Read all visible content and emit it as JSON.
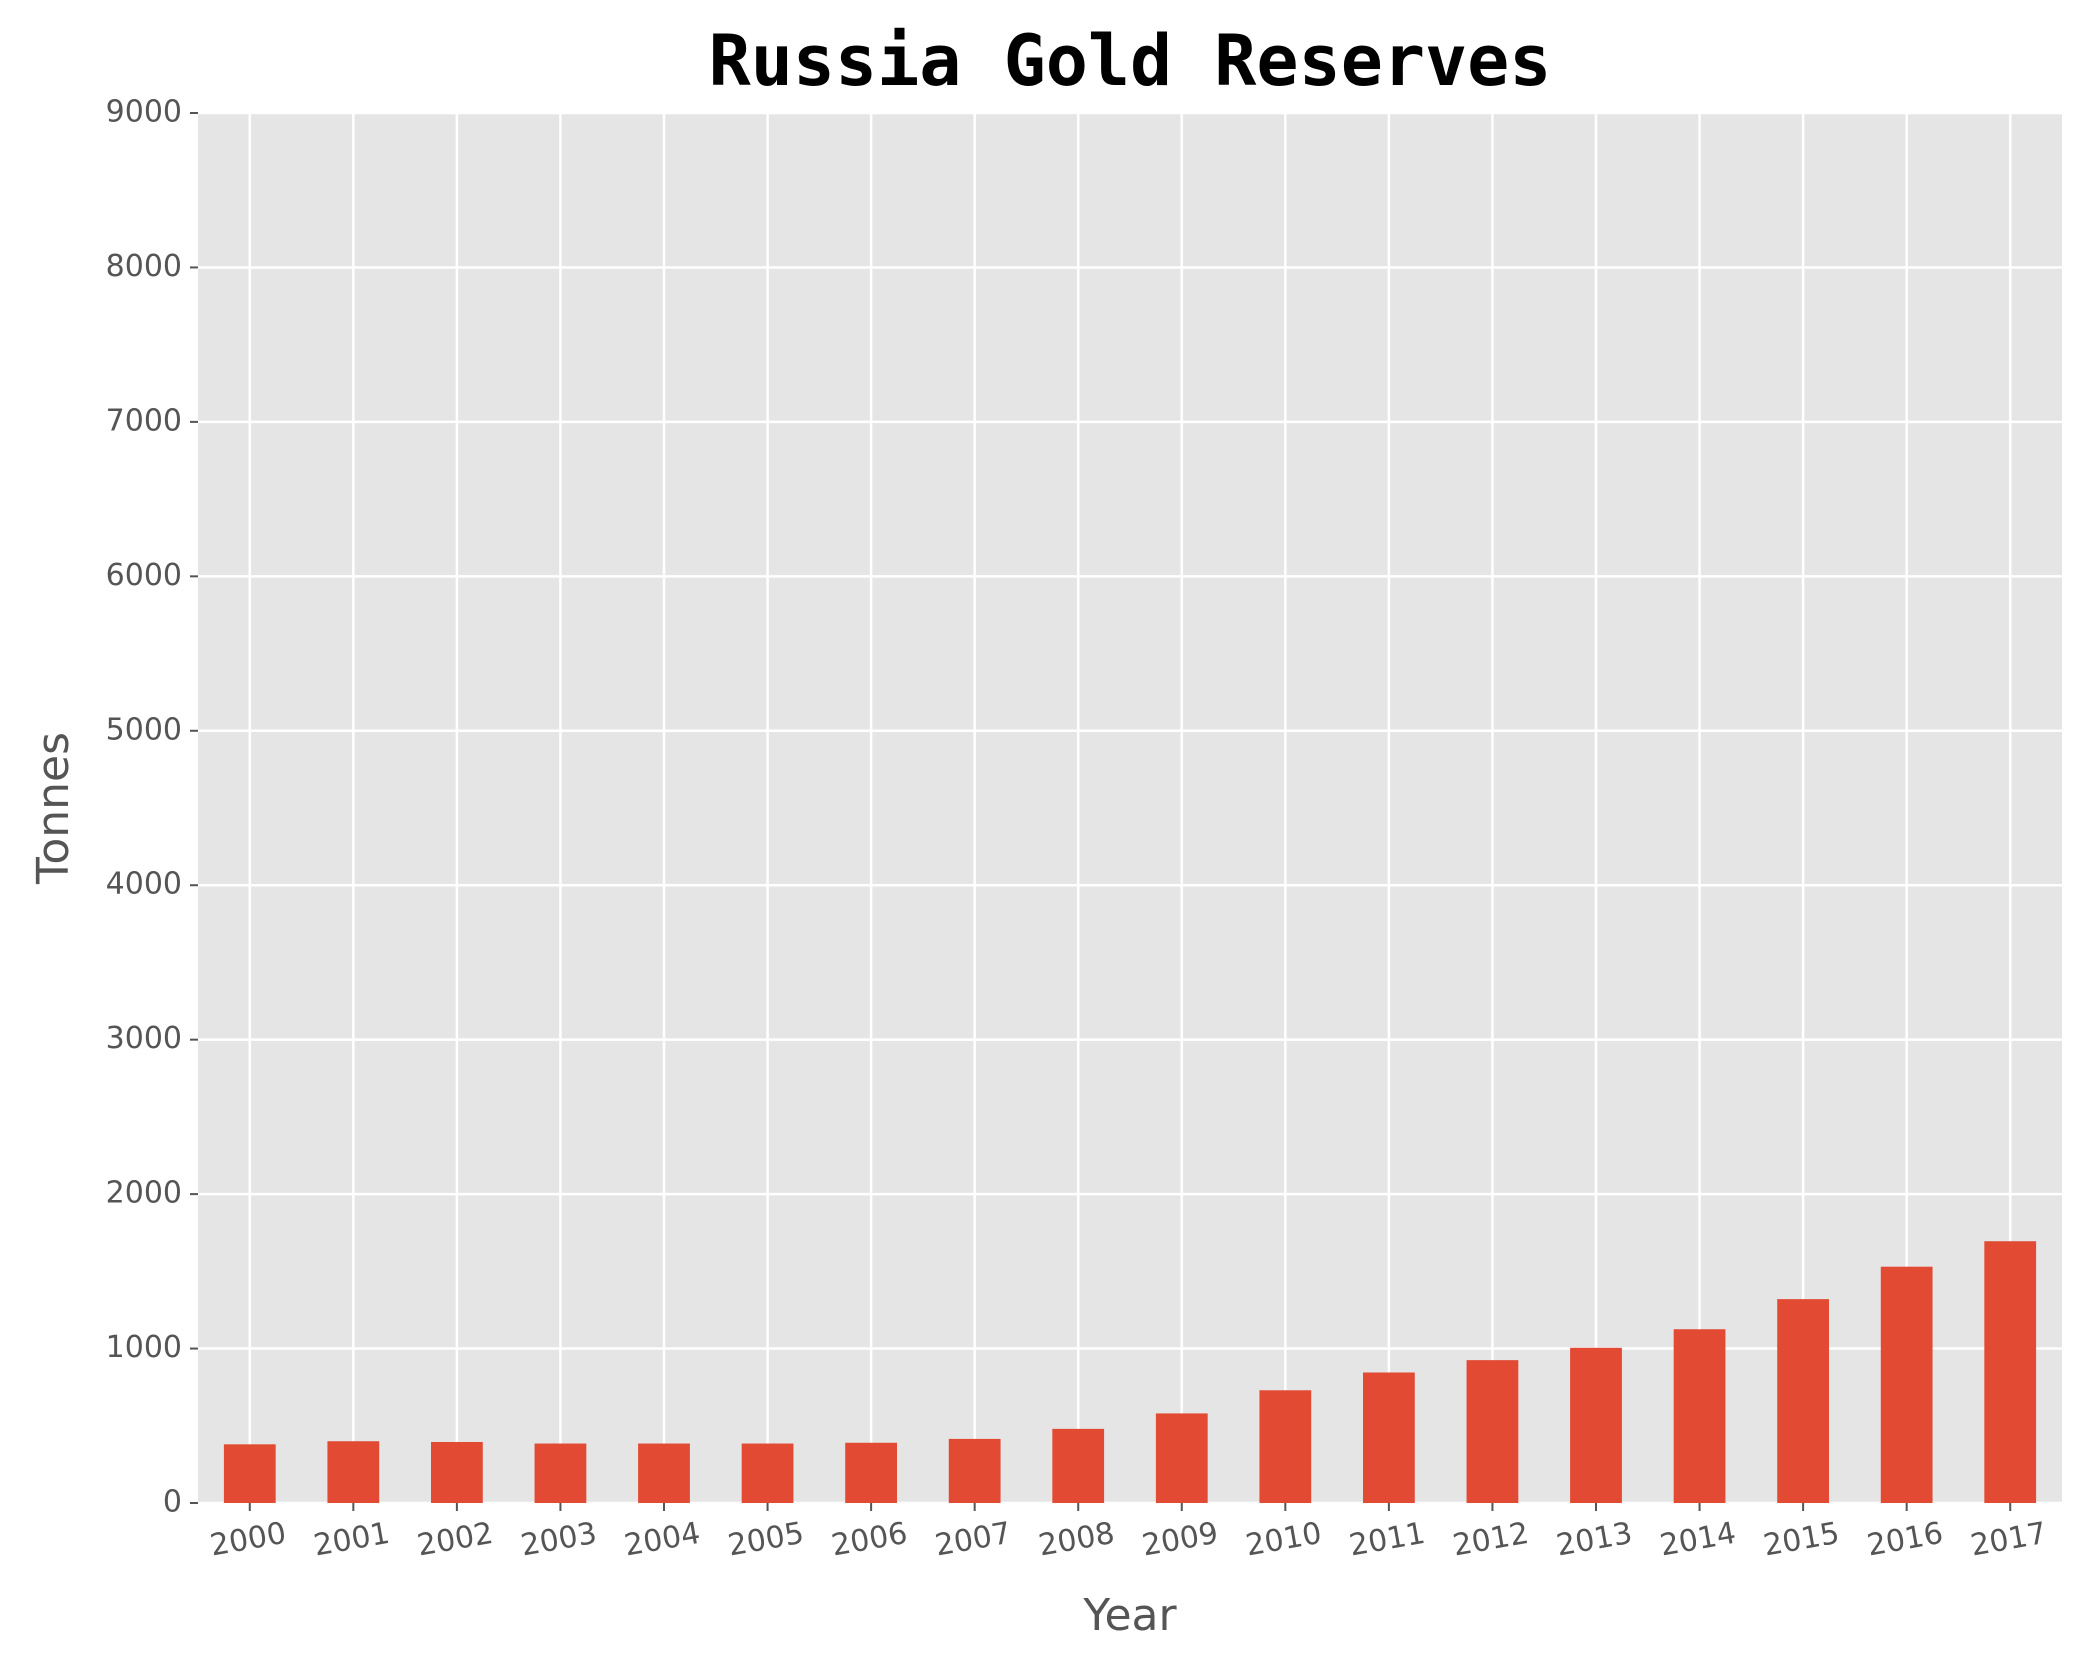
{
  "chart_data": {
    "type": "bar",
    "title": "Russia Gold Reserves",
    "xlabel": "Year",
    "ylabel": "Tonnes",
    "categories": [
      "2000",
      "2001",
      "2002",
      "2003",
      "2004",
      "2005",
      "2006",
      "2007",
      "2008",
      "2009",
      "2010",
      "2011",
      "2012",
      "2013",
      "2014",
      "2015",
      "2016",
      "2017"
    ],
    "values": [
      380,
      400,
      395,
      385,
      385,
      385,
      390,
      415,
      480,
      580,
      730,
      845,
      925,
      1005,
      1125,
      1320,
      1530,
      1695
    ],
    "ylim": [
      0,
      9000
    ],
    "yticks": [
      "0",
      "1000",
      "2000",
      "3000",
      "4000",
      "5000",
      "6000",
      "7000",
      "8000",
      "9000"
    ],
    "grid": true,
    "legend": "none",
    "colors": {
      "bar": "#E24A33",
      "plot_background": "#E5E5E5",
      "grid": "#FFFFFF",
      "text": "#555555",
      "title": "#000000"
    }
  }
}
